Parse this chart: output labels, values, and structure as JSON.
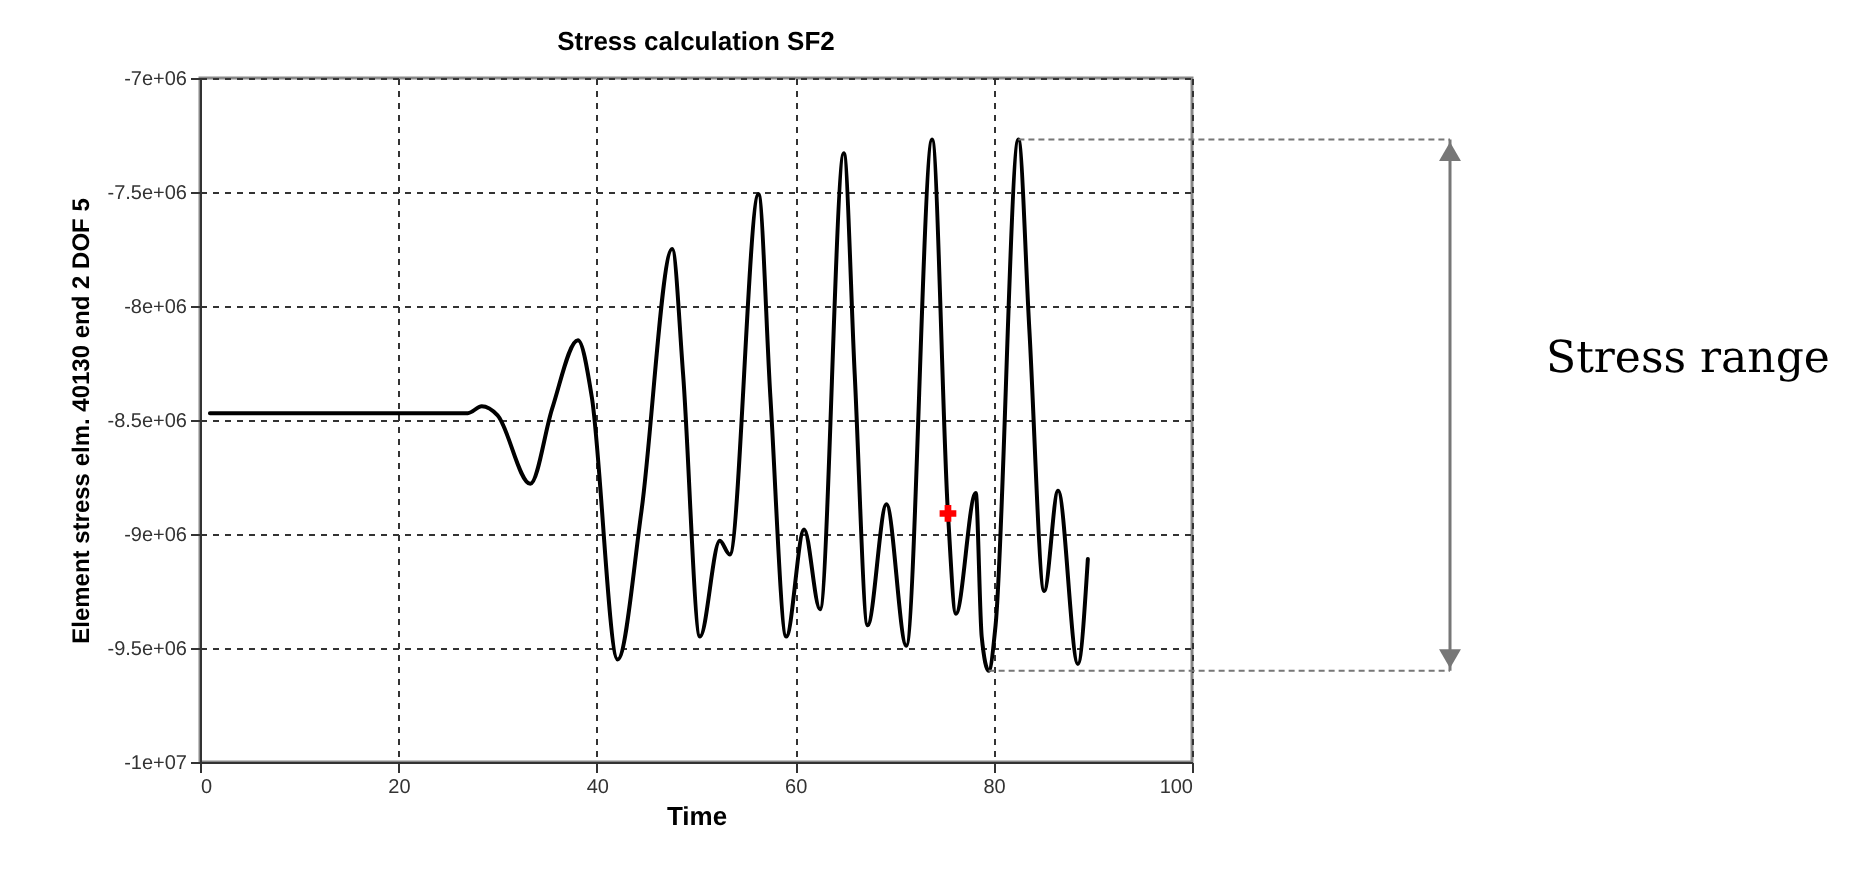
{
  "chart_data": {
    "type": "line",
    "title": "Stress calculation SF2",
    "xlabel": "Time",
    "ylabel": "Element stress elm. 40130 end 2 DOF 5",
    "xlim": [
      0,
      100
    ],
    "xticks": [
      0,
      20,
      40,
      60,
      80,
      100
    ],
    "ylim": [
      -10000000,
      -7000000
    ],
    "yticks": [
      {
        "value": -10000000,
        "label": "-1e+07"
      },
      {
        "value": -9500000,
        "label": "-9.5e+06"
      },
      {
        "value": -9000000,
        "label": "-9e+06"
      },
      {
        "value": -8500000,
        "label": "-8.5e+06"
      },
      {
        "value": -8000000,
        "label": "-8e+06"
      },
      {
        "value": -7500000,
        "label": "-7.5e+06"
      },
      {
        "value": -7000000,
        "label": "-7e+06"
      }
    ],
    "grid": true,
    "line_style": "solid",
    "annotations": [
      "Stress range"
    ],
    "ref_lines": [
      {
        "axis": "y",
        "value": -7270000,
        "label": null,
        "color": "#777777",
        "line_style": "dashed"
      },
      {
        "axis": "y",
        "value": -9600000,
        "label": null,
        "color": "#777777",
        "line_style": "dashed"
      }
    ],
    "series": [
      {
        "color": "#000000",
        "marker": "none",
        "x": [
          1,
          27,
          28.4,
          30,
          33.3,
          35.5,
          38.1,
          39.5,
          42.1,
          44.5,
          47.6,
          48.7,
          50.4,
          52.4,
          53.4,
          56.3,
          57.5,
          59.1,
          60.9,
          62.5,
          64.9,
          66,
          67.3,
          69.2,
          71.2,
          73.8,
          75.4,
          76.2,
          78.2,
          78.8,
          79.5,
          80.2,
          82.5,
          83.6,
          85.1,
          86.5,
          88.5,
          89.5
        ],
        "values": [
          -8470000,
          -8470000,
          -8440000,
          -8480000,
          -8780000,
          -8450000,
          -8150000,
          -8400000,
          -9550000,
          -8900000,
          -7750000,
          -8300000,
          -9450000,
          -9030000,
          -9090000,
          -7510000,
          -8400000,
          -9450000,
          -8980000,
          -9330000,
          -7330000,
          -8300000,
          -9400000,
          -8870000,
          -9490000,
          -7270000,
          -8910000,
          -9350000,
          -8820000,
          -9450000,
          -9600000,
          -9400000,
          -7270000,
          -8100000,
          -9250000,
          -8810000,
          -9570000,
          -9110000
        ]
      },
      {
        "type": "scatter",
        "color": "#ff0000",
        "marker": "cross",
        "x": [
          75.4
        ],
        "values": [
          -8910000
        ]
      }
    ]
  }
}
